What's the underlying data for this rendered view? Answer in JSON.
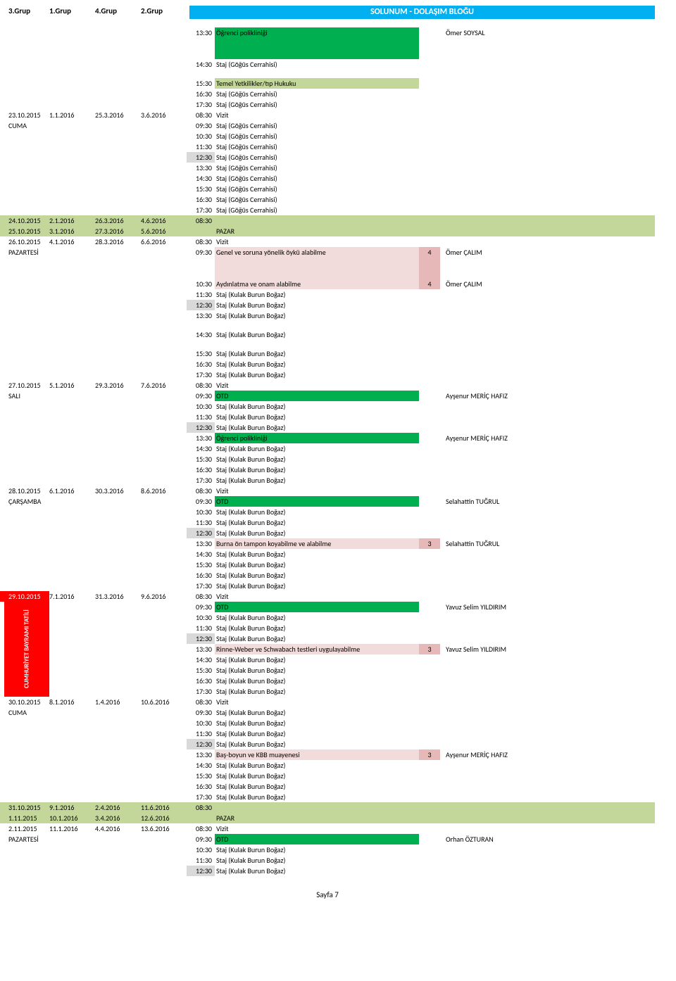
{
  "header": {
    "g3": "3.Grup",
    "g1": "1.Grup",
    "g4": "4.Grup",
    "g2": "2.Grup",
    "title": "SOLUNUM - DOLAŞIM BLOĞU"
  },
  "colors": {
    "greenHdr": "#c4d79b",
    "greenBright": "#00b050",
    "pink": "#f2dcdb",
    "pinkNum": "#e6b8b7",
    "gray": "#d9d9d9",
    "red": "#ff0000",
    "blue": "#00b0f0"
  },
  "footer": "Sayfa 7",
  "holiday": "CUMHURİYET BAYRAMI TATİLİ",
  "rows": [
    {
      "type": "slot",
      "time": "13:30",
      "act": "Öğrenci polikliniği",
      "actBg": "green-bright",
      "tall": true,
      "inst": "Ömer SOYSAL"
    },
    {
      "type": "slot",
      "time": "14:30",
      "act": "Staj (Göğüs Cerrahisi)"
    },
    {
      "type": "spacer"
    },
    {
      "type": "slot",
      "time": "15:30",
      "act": "Temel Yetkilikler/tıp Hukuku",
      "actBg": "green-hdr"
    },
    {
      "type": "slot",
      "time": "16:30",
      "act": "Staj (Göğüs Cerrahisi)"
    },
    {
      "type": "slot",
      "time": "17:30",
      "act": "Staj (Göğüs Cerrahisi)"
    },
    {
      "type": "day",
      "g3": "23.10.2015",
      "g1": "1.1.2016",
      "g4": "25.3.2016",
      "g2": "3.6.2016",
      "time": "08:30",
      "act": "Vizit"
    },
    {
      "type": "dayname",
      "name": "CUMA",
      "time": "09:30",
      "act": "Staj (Göğüs Cerrahisi)"
    },
    {
      "type": "slot",
      "time": "10:30",
      "act": "Staj (Göğüs Cerrahisi)"
    },
    {
      "type": "slot",
      "time": "11:30",
      "act": "Staj (Göğüs Cerrahisi)"
    },
    {
      "type": "slot",
      "time": "12:30",
      "act": "Staj (Göğüs Cerrahisi)",
      "timeBg": "gray"
    },
    {
      "type": "slot",
      "time": "13:30",
      "act": "Staj (Göğüs Cerrahisi)"
    },
    {
      "type": "slot",
      "time": "14:30",
      "act": "Staj (Göğüs Cerrahisi)"
    },
    {
      "type": "slot",
      "time": "15:30",
      "act": "Staj (Göğüs Cerrahisi)"
    },
    {
      "type": "slot",
      "time": "16:30",
      "act": "Staj (Göğüs Cerrahisi)"
    },
    {
      "type": "slot",
      "time": "17:30",
      "act": "Staj (Göğüs Cerrahisi)"
    },
    {
      "type": "weekend",
      "g3": "24.10.2015",
      "g1": "2.1.2016",
      "g4": "26.3.2016",
      "g2": "4.6.2016",
      "time": "08:30"
    },
    {
      "type": "weekend",
      "g3": "25.10.2015",
      "g1": "3.1.2016",
      "g4": "27.3.2016",
      "g2": "5.6.2016",
      "act": "PAZAR"
    },
    {
      "type": "day",
      "g3": "26.10.2015",
      "g1": "4.1.2016",
      "g4": "28.3.2016",
      "g2": "6.6.2016",
      "time": "08:30",
      "act": "Vizit"
    },
    {
      "type": "dayname",
      "name": "PAZARTESİ",
      "time": "09:30",
      "act": "Genel ve soruna yönelik öykü alabilme",
      "actBg": "pink",
      "num": "4",
      "numBg": "pink-num",
      "inst": "Ömer ÇALIM",
      "tall": true
    },
    {
      "type": "slot",
      "time": "10:30",
      "act": "Aydınlatma ve onam alabilme",
      "actBg": "pink",
      "num": "4",
      "numBg": "pink-num",
      "inst": "Ömer ÇALIM"
    },
    {
      "type": "slot",
      "time": "11:30",
      "act": "Staj (Kulak Burun Boğaz)"
    },
    {
      "type": "slot",
      "time": "12:30",
      "act": "Staj (Kulak Burun Boğaz)",
      "timeBg": "gray"
    },
    {
      "type": "slot",
      "time": "13:30",
      "act": "Staj (Kulak Burun Boğaz)"
    },
    {
      "type": "spacer"
    },
    {
      "type": "slot",
      "time": "14:30",
      "act": "Staj (Kulak Burun Boğaz)"
    },
    {
      "type": "spacer"
    },
    {
      "type": "slot",
      "time": "15:30",
      "act": "Staj (Kulak Burun Boğaz)"
    },
    {
      "type": "slot",
      "time": "16:30",
      "act": "Staj (Kulak Burun Boğaz)"
    },
    {
      "type": "slot",
      "time": "17:30",
      "act": "Staj (Kulak Burun Boğaz)"
    },
    {
      "type": "day",
      "g3": "27.10.2015",
      "g1": "5.1.2016",
      "g4": "29.3.2016",
      "g2": "7.6.2016",
      "time": "08:30",
      "act": "Vizit"
    },
    {
      "type": "dayname",
      "name": "SALI",
      "time": "09:30",
      "act": "OTD",
      "actBg": "green-bright",
      "inst": "Ayşenur MERİÇ HAFIZ"
    },
    {
      "type": "slot",
      "time": "10:30",
      "act": "Staj (Kulak Burun Boğaz)"
    },
    {
      "type": "slot",
      "time": "11:30",
      "act": "Staj (Kulak Burun Boğaz)"
    },
    {
      "type": "slot",
      "time": "12:30",
      "act": "Staj (Kulak Burun Boğaz)",
      "timeBg": "gray"
    },
    {
      "type": "slot",
      "time": "13:30",
      "act": "Öğrenci polikliniği",
      "actBg": "green-bright",
      "inst": "Ayşenur MERİÇ HAFIZ"
    },
    {
      "type": "slot",
      "time": "14:30",
      "act": "Staj (Kulak Burun Boğaz)"
    },
    {
      "type": "slot",
      "time": "15:30",
      "act": "Staj (Kulak Burun Boğaz)"
    },
    {
      "type": "slot",
      "time": "16:30",
      "act": "Staj (Kulak Burun Boğaz)"
    },
    {
      "type": "slot",
      "time": "17:30",
      "act": "Staj (Kulak Burun Boğaz)"
    },
    {
      "type": "day",
      "g3": "28.10.2015",
      "g1": "6.1.2016",
      "g4": "30.3.2016",
      "g2": "8.6.2016",
      "time": "08:30",
      "act": "Vizit"
    },
    {
      "type": "dayname",
      "name": "ÇARŞAMBA",
      "time": "09:30",
      "act": "OTD",
      "actBg": "green-bright",
      "inst": "Selahattin TUĞRUL"
    },
    {
      "type": "slot",
      "time": "10:30",
      "act": "Staj (Kulak Burun Boğaz)"
    },
    {
      "type": "slot",
      "time": "11:30",
      "act": "Staj (Kulak Burun Boğaz)"
    },
    {
      "type": "slot",
      "time": "12:30",
      "act": "Staj (Kulak Burun Boğaz)",
      "timeBg": "gray"
    },
    {
      "type": "slot",
      "time": "13:30",
      "act": "Burna ön tampon koyabilme ve alabilme",
      "actBg": "pink",
      "num": "3",
      "numBg": "pink-num",
      "inst": "Selahattin TUĞRUL"
    },
    {
      "type": "slot",
      "time": "14:30",
      "act": "Staj (Kulak Burun Boğaz)"
    },
    {
      "type": "slot",
      "time": "15:30",
      "act": "Staj (Kulak Burun Boğaz)"
    },
    {
      "type": "slot",
      "time": "16:30",
      "act": "Staj (Kulak Burun Boğaz)"
    },
    {
      "type": "slot",
      "time": "17:30",
      "act": "Staj (Kulak Burun Boğaz)"
    },
    {
      "type": "holiday",
      "g3": "29.10.2015",
      "g1": "7.1.2016",
      "g4": "31.3.2016",
      "g2": "9.6.2016",
      "time": "08:30",
      "act": "Vizit"
    },
    {
      "type": "slot",
      "time": "09:30",
      "act": "OTD",
      "actBg": "green-bright",
      "inst": "Yavuz Selim YILDIRIM",
      "holstart": true
    },
    {
      "type": "slot",
      "time": "10:30",
      "act": "Staj (Kulak Burun Boğaz)"
    },
    {
      "type": "slot",
      "time": "11:30",
      "act": "Staj (Kulak Burun Boğaz)"
    },
    {
      "type": "slot",
      "time": "12:30",
      "act": "Staj (Kulak Burun Boğaz)",
      "timeBg": "gray"
    },
    {
      "type": "slot",
      "time": "13:30",
      "act": "Rinne-Weber ve Schwabach testleri uygulayabilme",
      "actBg": "pink",
      "num": "3",
      "numBg": "pink-num",
      "inst": "Yavuz Selim YILDIRIM"
    },
    {
      "type": "slot",
      "time": "14:30",
      "act": "Staj (Kulak Burun Boğaz)"
    },
    {
      "type": "slot",
      "time": "15:30",
      "act": "Staj (Kulak Burun Boğaz)"
    },
    {
      "type": "slot",
      "time": "16:30",
      "act": "Staj (Kulak Burun Boğaz)"
    },
    {
      "type": "slot",
      "time": "17:30",
      "act": "Staj (Kulak Burun Boğaz)"
    },
    {
      "type": "day",
      "g3": "30.10.2015",
      "g1": "8.1.2016",
      "g4": "1.4.2016",
      "g2": "10.6.2016",
      "time": "08:30",
      "act": "Vizit"
    },
    {
      "type": "dayname",
      "name": "CUMA",
      "time": "09:30",
      "act": "Staj (Kulak Burun Boğaz)"
    },
    {
      "type": "slot",
      "time": "10:30",
      "act": "Staj (Kulak Burun Boğaz)"
    },
    {
      "type": "slot",
      "time": "11:30",
      "act": "Staj (Kulak Burun Boğaz)"
    },
    {
      "type": "slot",
      "time": "12:30",
      "act": "Staj (Kulak Burun Boğaz)",
      "timeBg": "gray"
    },
    {
      "type": "slot",
      "time": "13:30",
      "act": "Baş-boyun ve KBB muayenesi",
      "actBg": "pink",
      "num": "3",
      "numBg": "pink-num",
      "inst": "Ayşenur MERİÇ HAFIZ"
    },
    {
      "type": "slot",
      "time": "14:30",
      "act": "Staj (Kulak Burun Boğaz)"
    },
    {
      "type": "slot",
      "time": "15:30",
      "act": "Staj (Kulak Burun Boğaz)"
    },
    {
      "type": "slot",
      "time": "16:30",
      "act": "Staj (Kulak Burun Boğaz)"
    },
    {
      "type": "slot",
      "time": "17:30",
      "act": "Staj (Kulak Burun Boğaz)"
    },
    {
      "type": "weekend",
      "g3": "31.10.2015",
      "g1": "9.1.2016",
      "g4": "2.4.2016",
      "g2": "11.6.2016",
      "time": "08:30"
    },
    {
      "type": "weekend",
      "g3": "1.11.2015",
      "g1": "10.1.2016",
      "g4": "3.4.2016",
      "g2": "12.6.2016",
      "act": "PAZAR"
    },
    {
      "type": "day",
      "g3": "2.11.2015",
      "g1": "11.1.2016",
      "g4": "4.4.2016",
      "g2": "13.6.2016",
      "time": "08:30",
      "act": "Vizit"
    },
    {
      "type": "dayname",
      "name": "PAZARTESİ",
      "time": "09:30",
      "act": "OTD",
      "actBg": "green-bright",
      "inst": "Orhan ÖZTURAN"
    },
    {
      "type": "slot",
      "time": "10:30",
      "act": "Staj (Kulak Burun Boğaz)"
    },
    {
      "type": "slot",
      "time": "11:30",
      "act": "Staj (Kulak Burun Boğaz)"
    },
    {
      "type": "slot",
      "time": "12:30",
      "act": "Staj (Kulak Burun Boğaz)",
      "timeBg": "gray"
    }
  ]
}
